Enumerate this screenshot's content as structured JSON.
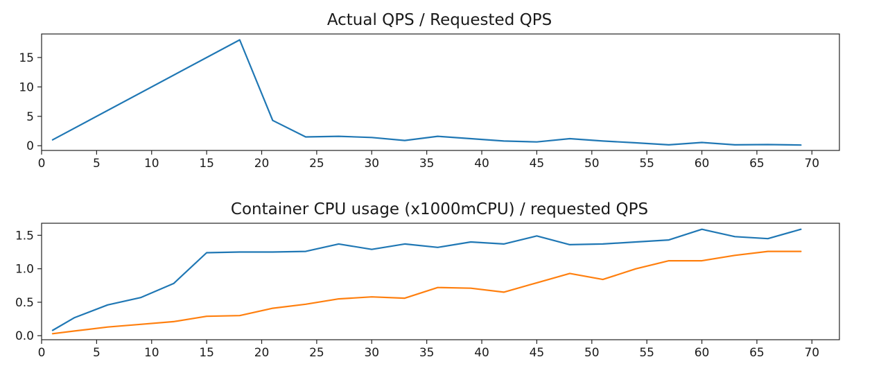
{
  "chart_data": [
    {
      "type": "line",
      "title": "Actual QPS / Requested QPS",
      "xlabel": "",
      "ylabel": "",
      "xlim": [
        0,
        72.5
      ],
      "ylim": [
        -0.8,
        19
      ],
      "xticks": [
        0,
        5,
        10,
        15,
        20,
        25,
        30,
        35,
        40,
        45,
        50,
        55,
        60,
        65,
        70
      ],
      "yticks": [
        0,
        5,
        10,
        15
      ],
      "grid": false,
      "series": [
        {
          "color": "#1f77b4",
          "x": [
            1,
            18,
            21,
            24,
            27,
            30,
            33,
            36,
            39,
            42,
            45,
            48,
            51,
            54,
            57,
            60,
            63,
            66,
            69
          ],
          "y": [
            1.0,
            18.0,
            4.3,
            1.5,
            1.6,
            1.4,
            0.9,
            1.6,
            1.2,
            0.8,
            0.65,
            1.2,
            0.8,
            0.5,
            0.15,
            0.55,
            0.15,
            0.2,
            0.12
          ]
        }
      ]
    },
    {
      "type": "line",
      "title": "Container CPU usage (x1000mCPU) / requested QPS",
      "xlabel": "",
      "ylabel": "",
      "xlim": [
        0,
        72.5
      ],
      "ylim": [
        -0.06,
        1.68
      ],
      "xticks": [
        0,
        5,
        10,
        15,
        20,
        25,
        30,
        35,
        40,
        45,
        50,
        55,
        60,
        65,
        70
      ],
      "yticks": [
        0.0,
        0.5,
        1.0,
        1.5
      ],
      "ytick_labels": [
        "0.0",
        "0.5",
        "1.0",
        "1.5"
      ],
      "grid": false,
      "series": [
        {
          "color": "#1f77b4",
          "x": [
            1,
            3,
            6,
            9,
            12,
            15,
            18,
            21,
            24,
            27,
            30,
            33,
            36,
            39,
            42,
            45,
            48,
            51,
            54,
            57,
            60,
            63,
            66,
            69
          ],
          "y": [
            0.08,
            0.27,
            0.46,
            0.57,
            0.78,
            1.24,
            1.25,
            1.25,
            1.26,
            1.37,
            1.29,
            1.37,
            1.32,
            1.4,
            1.37,
            1.49,
            1.36,
            1.37,
            1.4,
            1.43,
            1.59,
            1.48,
            1.45,
            1.59
          ]
        },
        {
          "color": "#ff7f0e",
          "x": [
            1,
            3,
            6,
            9,
            12,
            15,
            18,
            21,
            24,
            27,
            30,
            33,
            36,
            39,
            42,
            45,
            48,
            51,
            54,
            57,
            60,
            63,
            66,
            69
          ],
          "y": [
            0.03,
            0.07,
            0.13,
            0.17,
            0.21,
            0.29,
            0.3,
            0.41,
            0.47,
            0.55,
            0.58,
            0.56,
            0.72,
            0.71,
            0.65,
            0.79,
            0.93,
            0.84,
            1.0,
            1.12,
            1.12,
            1.2,
            1.26,
            1.26
          ]
        }
      ]
    }
  ]
}
